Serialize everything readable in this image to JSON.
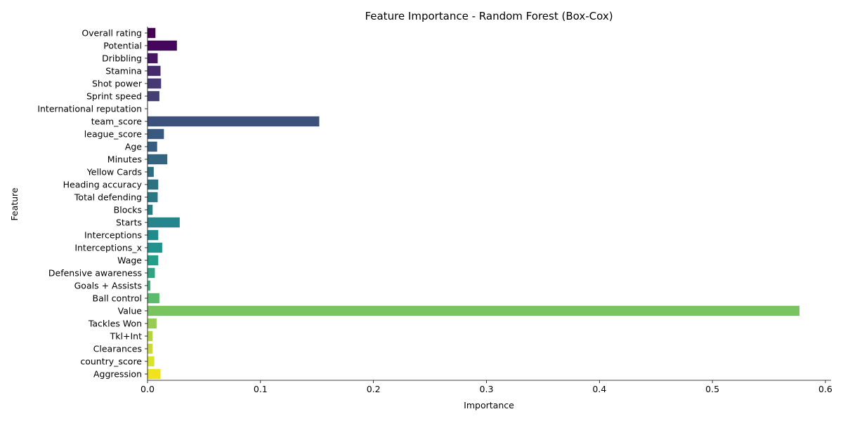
{
  "chart_data": {
    "type": "bar",
    "orientation": "horizontal",
    "title": "Feature Importance - Random Forest (Box-Cox)",
    "xlabel": "Importance",
    "ylabel": "Feature",
    "xlim": [
      0,
      0.605
    ],
    "xticks": [
      0.0,
      0.1,
      0.2,
      0.3,
      0.4,
      0.5,
      0.6
    ],
    "xtick_labels": [
      "0.0",
      "0.1",
      "0.2",
      "0.3",
      "0.4",
      "0.5",
      "0.6"
    ],
    "grid": false,
    "palette": "viridis",
    "categories": [
      "Overall rating",
      "Potential",
      "Dribbling",
      "Stamina",
      "Shot power",
      "Sprint speed",
      "International reputation",
      "team_score",
      "league_score",
      "Age",
      "Minutes",
      "Yellow Cards",
      "Heading accuracy",
      "Total defending",
      "Blocks",
      "Starts",
      "Interceptions",
      "Interceptions_x",
      "Wage",
      "Defensive awareness",
      "Goals + Assists",
      "Ball control",
      "Value",
      "Tackles Won",
      "Tkl+Int",
      "Clearances",
      "country_score",
      "Aggression"
    ],
    "values": [
      0.007,
      0.026,
      0.009,
      0.0115,
      0.012,
      0.0105,
      0.0002,
      0.152,
      0.0145,
      0.0085,
      0.0175,
      0.0055,
      0.0095,
      0.009,
      0.0045,
      0.0285,
      0.0095,
      0.013,
      0.0095,
      0.0065,
      0.0025,
      0.0105,
      0.577,
      0.008,
      0.0045,
      0.0045,
      0.006,
      0.0115
    ],
    "colors": [
      "#440154",
      "#45075b",
      "#461561",
      "#472a6c",
      "#463872",
      "#433f75",
      "#3f4679",
      "#3c527d",
      "#39587e",
      "#365e80",
      "#336581",
      "#2f6d82",
      "#2c7282",
      "#2a7883",
      "#287d83",
      "#25848c",
      "#228a8d",
      "#20948c",
      "#249d88",
      "#31a383",
      "#42b07a",
      "#5bbb6d",
      "#79c45f",
      "#97cc52",
      "#b4d446",
      "#cbd939",
      "#d8e42a",
      "#f0e31e"
    ]
  }
}
